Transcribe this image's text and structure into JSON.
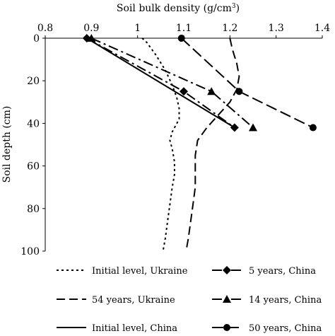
{
  "chart_data": {
    "type": "line",
    "xlabel": "Soil bulk density (g/cm",
    "xlabel_sup": "3",
    "xlabel_close": ")",
    "ylabel": "Soil depth (cm)",
    "xlim": [
      0.8,
      1.4
    ],
    "ylim": [
      0,
      100
    ],
    "y_inverted": true,
    "x_axis_position": "top",
    "x_ticks": [
      0.8,
      0.9,
      1.0,
      1.1,
      1.2,
      1.3,
      1.4
    ],
    "x_tick_labels": [
      "0.8",
      "0.9",
      "1",
      "1.1",
      "1.2",
      "1.3",
      "1.4"
    ],
    "y_ticks": [
      0,
      20,
      40,
      60,
      80,
      100
    ],
    "y_tick_labels": [
      "0",
      "20",
      "40",
      "60",
      "80",
      "100"
    ],
    "grid": false,
    "legend_position": "bottom",
    "series": [
      {
        "name": "Initial level, Ukraine",
        "style": "dotted",
        "marker": "none",
        "points": [
          [
            1.01,
            0
          ],
          [
            1.02,
            2
          ],
          [
            1.04,
            8
          ],
          [
            1.06,
            15
          ],
          [
            1.075,
            22
          ],
          [
            1.085,
            28
          ],
          [
            1.09,
            33
          ],
          [
            1.09,
            38
          ],
          [
            1.075,
            44
          ],
          [
            1.07,
            48
          ],
          [
            1.075,
            52
          ],
          [
            1.08,
            58
          ],
          [
            1.08,
            64
          ],
          [
            1.075,
            70
          ],
          [
            1.07,
            78
          ],
          [
            1.065,
            86
          ],
          [
            1.06,
            94
          ],
          [
            1.055,
            100
          ]
        ]
      },
      {
        "name": "54 years, Ukraine",
        "style": "dashed",
        "marker": "none",
        "points": [
          [
            1.2,
            0
          ],
          [
            1.205,
            5
          ],
          [
            1.215,
            12
          ],
          [
            1.22,
            18
          ],
          [
            1.215,
            24
          ],
          [
            1.2,
            30
          ],
          [
            1.175,
            36
          ],
          [
            1.15,
            42
          ],
          [
            1.13,
            48
          ],
          [
            1.125,
            55
          ],
          [
            1.125,
            62
          ],
          [
            1.125,
            70
          ],
          [
            1.12,
            78
          ],
          [
            1.115,
            86
          ],
          [
            1.11,
            94
          ],
          [
            1.105,
            100
          ]
        ]
      },
      {
        "name": "Initial level, China",
        "style": "solid",
        "marker": "none",
        "points": [
          [
            0.89,
            0
          ],
          [
            1.21,
            42
          ]
        ]
      },
      {
        "name": "5 years, China",
        "style": "dashdot",
        "marker": "diamond",
        "points": [
          [
            0.89,
            0
          ],
          [
            1.1,
            25
          ],
          [
            1.21,
            42
          ]
        ]
      },
      {
        "name": "14 years, China",
        "style": "dashdot",
        "marker": "triangle",
        "points": [
          [
            0.9,
            0
          ],
          [
            1.16,
            25
          ],
          [
            1.25,
            42
          ]
        ]
      },
      {
        "name": "50 years, China",
        "style": "longdash",
        "marker": "circle",
        "points": [
          [
            1.095,
            0
          ],
          [
            1.22,
            25
          ],
          [
            1.38,
            42
          ]
        ]
      }
    ]
  },
  "legend": {
    "items": [
      {
        "label": "Initial level, Ukraine"
      },
      {
        "label": "5 years,  China"
      },
      {
        "label": "54 years, Ukraine"
      },
      {
        "label": "14 years,  China"
      },
      {
        "label": "Initial level,  China"
      },
      {
        "label": "50 years,  China"
      }
    ]
  }
}
